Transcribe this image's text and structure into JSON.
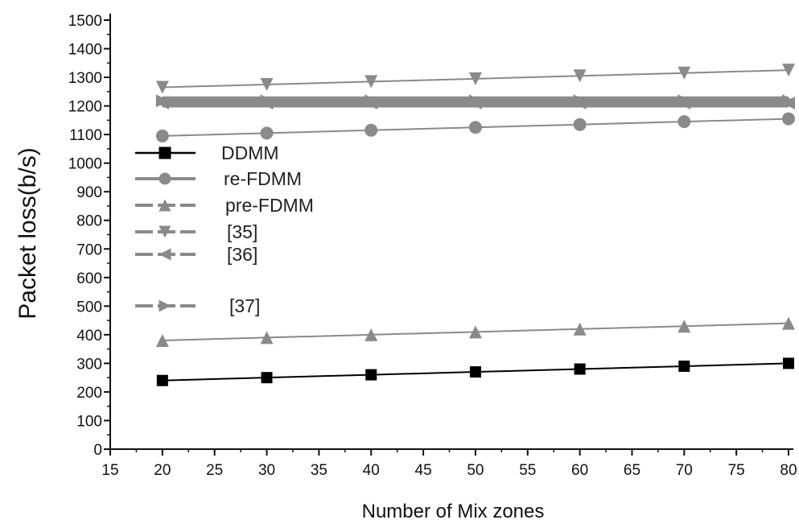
{
  "chart_data": {
    "type": "line",
    "title": "",
    "xlabel": "Number of Mix zones",
    "ylabel": "Packet loss(b/s)",
    "xlim": [
      15,
      80
    ],
    "ylim": [
      0,
      1500
    ],
    "xticks": [
      15,
      20,
      25,
      30,
      35,
      40,
      45,
      50,
      55,
      60,
      65,
      70,
      75,
      80
    ],
    "yticks": [
      0,
      100,
      200,
      300,
      400,
      500,
      600,
      700,
      800,
      900,
      1000,
      1100,
      1200,
      1300,
      1400,
      1500
    ],
    "grid": false,
    "legend_position": "left",
    "x": [
      20,
      30,
      40,
      50,
      60,
      70,
      80
    ],
    "series": [
      {
        "name": "DDMM",
        "values": [
          240,
          250,
          260,
          270,
          280,
          290,
          300
        ],
        "marker": "square",
        "color": "#000000"
      },
      {
        "name": "re-FDMM",
        "values": [
          1095,
          1105,
          1115,
          1125,
          1135,
          1145,
          1155
        ],
        "marker": "circle",
        "color": "#8a8a8a"
      },
      {
        "name": "pre-FDMM",
        "values": [
          380,
          390,
          400,
          410,
          420,
          430,
          440
        ],
        "marker": "triangle-up",
        "color": "#8a8a8a"
      },
      {
        "name": "[35]",
        "values": [
          1265,
          1275,
          1285,
          1295,
          1305,
          1315,
          1325
        ],
        "marker": "triangle-down",
        "color": "#8a8a8a"
      },
      {
        "name": "[36]",
        "values": [
          1210,
          1210,
          1210,
          1210,
          1210,
          1210,
          1210
        ],
        "marker": "triangle-left",
        "color": "#8a8a8a"
      },
      {
        "name": "[37]",
        "values": [
          1218,
          1218,
          1218,
          1218,
          1218,
          1218,
          1218
        ],
        "marker": "triangle-right",
        "color": "#8a8a8a"
      }
    ]
  }
}
